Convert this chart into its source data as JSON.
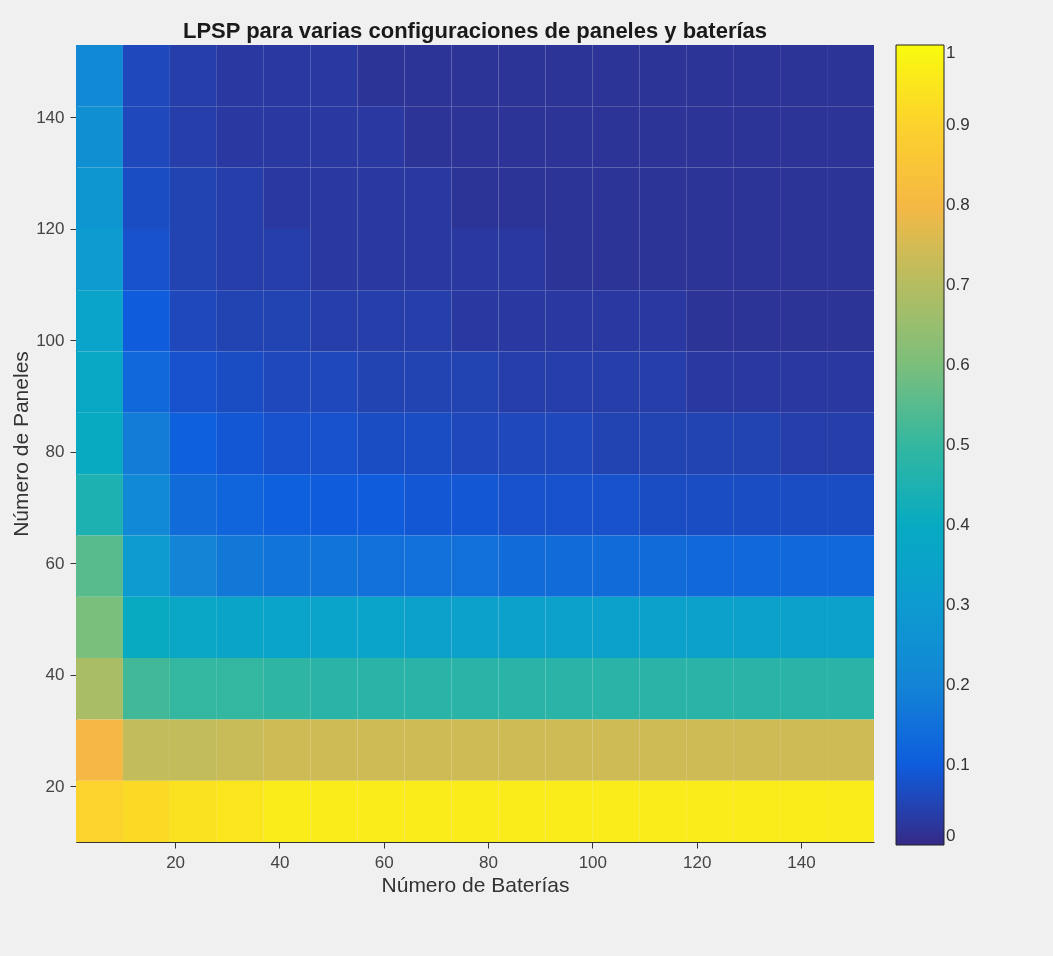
{
  "chart_data": {
    "type": "heatmap",
    "title": "LPSP para varias configuraciones de paneles y baterías",
    "xlabel": "Número de Baterías",
    "ylabel": "Número de Paneles",
    "x": [
      5.5,
      14.5,
      23.5,
      32.5,
      41.5,
      50.5,
      59.5,
      68.5,
      77.5,
      86.5,
      95.5,
      104.5,
      113.5,
      122.5,
      131.5,
      140.5,
      149.5
    ],
    "y": [
      147.5,
      136.5,
      125.5,
      114.5,
      103.5,
      92.5,
      81.5,
      70.5,
      59.5,
      48.5,
      37.5,
      26.5,
      15.5
    ],
    "xlim": [
      1,
      154
    ],
    "xticks": [
      20,
      40,
      60,
      80,
      100,
      120,
      140
    ],
    "ylim": [
      10,
      153
    ],
    "yticks": [
      20,
      40,
      60,
      80,
      100,
      120,
      140
    ],
    "clim": [
      0,
      1
    ],
    "cticks": [
      0,
      0.1,
      0.2,
      0.3,
      0.4,
      0.5,
      0.6,
      0.7,
      0.8,
      0.9,
      1
    ],
    "colors": [
      "#352a87",
      "#0f5cdd",
      "#1384d6",
      "#0d9bd0",
      "#07aac1",
      "#33b7a0",
      "#7bbf7c",
      "#b5bd61",
      "#f5b844",
      "#fcd22c",
      "#f9fb0e"
    ],
    "cells": [
      [
        0.22,
        0.06,
        0.04,
        0.03,
        0.03,
        0.03,
        0.02,
        0.02,
        0.02,
        0.02,
        0.02,
        0.02,
        0.02,
        0.02,
        0.02,
        0.02,
        0.02
      ],
      [
        0.25,
        0.06,
        0.04,
        0.03,
        0.03,
        0.03,
        0.03,
        0.02,
        0.02,
        0.02,
        0.02,
        0.02,
        0.02,
        0.02,
        0.02,
        0.02,
        0.02
      ],
      [
        0.28,
        0.07,
        0.05,
        0.04,
        0.03,
        0.03,
        0.03,
        0.03,
        0.02,
        0.02,
        0.02,
        0.02,
        0.02,
        0.02,
        0.02,
        0.02,
        0.02
      ],
      [
        0.3,
        0.08,
        0.05,
        0.04,
        0.04,
        0.03,
        0.03,
        0.03,
        0.03,
        0.03,
        0.02,
        0.02,
        0.02,
        0.02,
        0.02,
        0.02,
        0.02
      ],
      [
        0.35,
        0.1,
        0.06,
        0.05,
        0.05,
        0.04,
        0.04,
        0.04,
        0.03,
        0.03,
        0.03,
        0.03,
        0.03,
        0.02,
        0.02,
        0.02,
        0.02
      ],
      [
        0.38,
        0.13,
        0.08,
        0.07,
        0.06,
        0.06,
        0.05,
        0.05,
        0.05,
        0.04,
        0.04,
        0.04,
        0.04,
        0.03,
        0.03,
        0.03,
        0.03
      ],
      [
        0.4,
        0.18,
        0.11,
        0.09,
        0.08,
        0.08,
        0.07,
        0.07,
        0.06,
        0.06,
        0.06,
        0.05,
        0.05,
        0.05,
        0.05,
        0.04,
        0.04
      ],
      [
        0.45,
        0.22,
        0.14,
        0.12,
        0.11,
        0.1,
        0.1,
        0.09,
        0.09,
        0.08,
        0.08,
        0.08,
        0.07,
        0.07,
        0.07,
        0.07,
        0.07
      ],
      [
        0.55,
        0.3,
        0.2,
        0.17,
        0.16,
        0.16,
        0.15,
        0.15,
        0.15,
        0.14,
        0.14,
        0.14,
        0.14,
        0.13,
        0.13,
        0.13,
        0.13
      ],
      [
        0.6,
        0.4,
        0.37,
        0.36,
        0.35,
        0.35,
        0.35,
        0.34,
        0.34,
        0.34,
        0.34,
        0.34,
        0.34,
        0.34,
        0.34,
        0.34,
        0.34
      ],
      [
        0.68,
        0.52,
        0.5,
        0.5,
        0.49,
        0.48,
        0.48,
        0.48,
        0.48,
        0.48,
        0.48,
        0.48,
        0.48,
        0.48,
        0.48,
        0.48,
        0.48
      ],
      [
        0.8,
        0.72,
        0.72,
        0.73,
        0.74,
        0.74,
        0.74,
        0.74,
        0.74,
        0.74,
        0.74,
        0.74,
        0.74,
        0.74,
        0.74,
        0.74,
        0.74
      ],
      [
        0.9,
        0.92,
        0.94,
        0.95,
        0.96,
        0.96,
        0.96,
        0.96,
        0.96,
        0.96,
        0.96,
        0.96,
        0.96,
        0.96,
        0.96,
        0.96,
        0.96
      ]
    ]
  }
}
